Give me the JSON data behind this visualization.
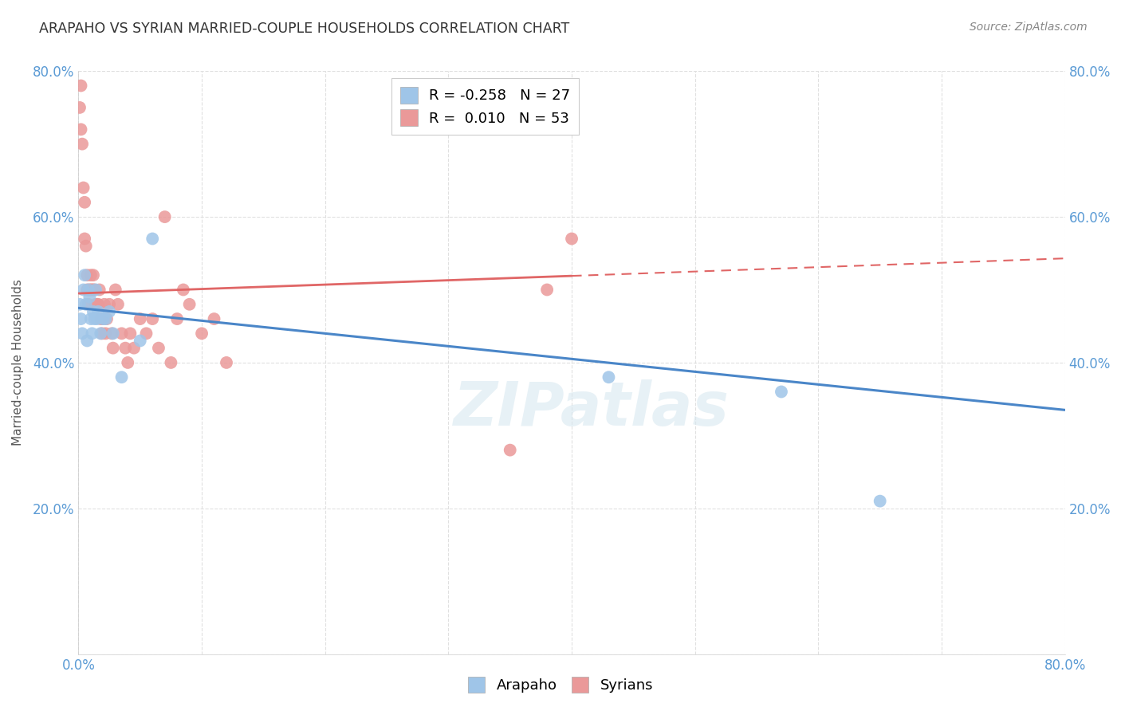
{
  "title": "ARAPAHO VS SYRIAN MARRIED-COUPLE HOUSEHOLDS CORRELATION CHART",
  "source": "Source: ZipAtlas.com",
  "ylabel": "Married-couple Households",
  "legend_arapaho": "Arapaho",
  "legend_syrians": "Syrians",
  "r_arapaho": -0.258,
  "n_arapaho": 27,
  "r_syrians": 0.01,
  "n_syrians": 53,
  "color_arapaho": "#9fc5e8",
  "color_syrians": "#ea9999",
  "color_arapaho_line": "#4a86c8",
  "color_syrians_line": "#e06666",
  "xmin": 0.0,
  "xmax": 0.8,
  "ymin": 0.0,
  "ymax": 0.8,
  "arapaho_x": [
    0.001,
    0.002,
    0.003,
    0.004,
    0.005,
    0.006,
    0.007,
    0.008,
    0.009,
    0.01,
    0.011,
    0.012,
    0.013,
    0.014,
    0.015,
    0.016,
    0.018,
    0.02,
    0.022,
    0.025,
    0.028,
    0.035,
    0.05,
    0.06,
    0.43,
    0.57,
    0.65
  ],
  "arapaho_y": [
    0.48,
    0.46,
    0.44,
    0.5,
    0.52,
    0.48,
    0.43,
    0.5,
    0.49,
    0.46,
    0.44,
    0.47,
    0.46,
    0.5,
    0.46,
    0.47,
    0.44,
    0.46,
    0.46,
    0.47,
    0.44,
    0.38,
    0.43,
    0.57,
    0.38,
    0.36,
    0.21
  ],
  "syrians_x": [
    0.001,
    0.002,
    0.002,
    0.003,
    0.004,
    0.005,
    0.005,
    0.006,
    0.007,
    0.007,
    0.008,
    0.009,
    0.01,
    0.01,
    0.011,
    0.012,
    0.012,
    0.013,
    0.014,
    0.015,
    0.016,
    0.017,
    0.018,
    0.019,
    0.02,
    0.021,
    0.022,
    0.023,
    0.025,
    0.027,
    0.028,
    0.03,
    0.032,
    0.035,
    0.038,
    0.04,
    0.042,
    0.045,
    0.05,
    0.055,
    0.06,
    0.065,
    0.07,
    0.075,
    0.08,
    0.085,
    0.09,
    0.1,
    0.11,
    0.12,
    0.35,
    0.38,
    0.4
  ],
  "syrians_y": [
    0.75,
    0.72,
    0.78,
    0.7,
    0.64,
    0.57,
    0.62,
    0.56,
    0.52,
    0.5,
    0.48,
    0.5,
    0.5,
    0.52,
    0.5,
    0.5,
    0.52,
    0.5,
    0.48,
    0.48,
    0.48,
    0.5,
    0.46,
    0.44,
    0.46,
    0.48,
    0.44,
    0.46,
    0.48,
    0.44,
    0.42,
    0.5,
    0.48,
    0.44,
    0.42,
    0.4,
    0.44,
    0.42,
    0.46,
    0.44,
    0.46,
    0.42,
    0.6,
    0.4,
    0.46,
    0.5,
    0.48,
    0.44,
    0.46,
    0.4,
    0.28,
    0.5,
    0.57
  ],
  "watermark": "ZIPatlas",
  "bg_color": "#ffffff",
  "grid_color": "#e0e0e0"
}
